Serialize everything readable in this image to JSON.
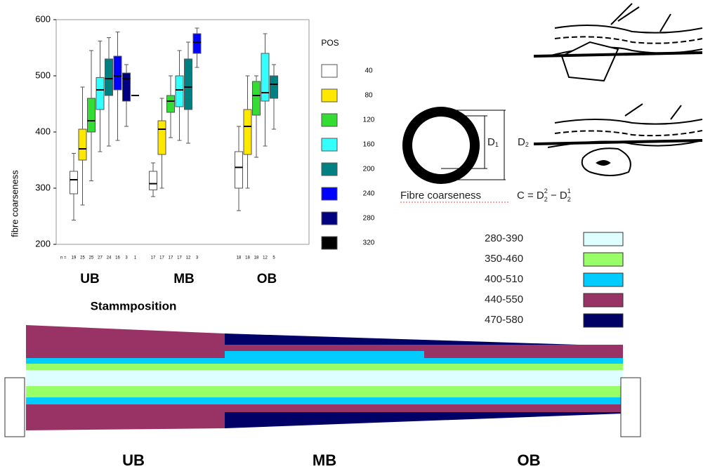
{
  "chart_data": {
    "type": "box",
    "y_label": "fibre coarseness",
    "x_label": "Stammposition",
    "categories": [
      "UB",
      "MB",
      "OB"
    ],
    "ylim": [
      200,
      600
    ],
    "yticks": [
      200,
      300,
      400,
      500,
      600
    ],
    "legend_title": "POS",
    "n_label": "n =",
    "counts": [
      [
        19,
        25,
        25,
        27,
        24,
        16,
        3,
        1
      ],
      [
        17,
        17,
        17,
        17,
        12,
        3
      ],
      [
        18,
        18,
        18,
        12,
        5
      ]
    ],
    "series": [
      {
        "name": "40",
        "color": "#ffffff",
        "values": [
          {
            "min": 243,
            "q1": 290,
            "median": 315,
            "q3": 330,
            "max": 362
          },
          {
            "min": 285,
            "q1": 297,
            "median": 308,
            "q3": 330,
            "max": 345
          },
          {
            "min": 260,
            "q1": 300,
            "median": 337,
            "q3": 365,
            "max": 410
          }
        ]
      },
      {
        "name": "80",
        "color": "#ffe800",
        "values": [
          {
            "min": 270,
            "q1": 350,
            "median": 370,
            "q3": 405,
            "max": 480
          },
          {
            "min": 300,
            "q1": 360,
            "median": 405,
            "q3": 420,
            "max": 460
          },
          {
            "min": 300,
            "q1": 360,
            "median": 410,
            "q3": 440,
            "max": 500
          }
        ]
      },
      {
        "name": "120",
        "color": "#33dd33",
        "values": [
          {
            "min": 313,
            "q1": 400,
            "median": 420,
            "q3": 460,
            "max": 545
          },
          {
            "min": 390,
            "q1": 435,
            "median": 455,
            "q3": 465,
            "max": 500
          },
          {
            "min": 355,
            "q1": 430,
            "median": 465,
            "q3": 490,
            "max": 500
          }
        ]
      },
      {
        "name": "160",
        "color": "#33ffff",
        "values": [
          {
            "min": 365,
            "q1": 440,
            "median": 475,
            "q3": 497,
            "max": 562
          },
          {
            "min": 385,
            "q1": 445,
            "median": 475,
            "q3": 500,
            "max": 545
          },
          {
            "min": 375,
            "q1": 455,
            "median": 470,
            "q3": 540,
            "max": 575
          }
        ]
      },
      {
        "name": "200",
        "color": "#008080",
        "values": [
          {
            "min": 375,
            "q1": 465,
            "median": 495,
            "q3": 530,
            "max": 568
          },
          {
            "min": 380,
            "q1": 440,
            "median": 480,
            "q3": 530,
            "max": 560
          },
          {
            "min": 405,
            "q1": 460,
            "median": 485,
            "q3": 500,
            "max": 520
          }
        ]
      },
      {
        "name": "240",
        "color": "#0000ff",
        "values": [
          {
            "min": 385,
            "q1": 475,
            "median": 500,
            "q3": 535,
            "max": 578
          },
          {
            "min": 515,
            "q1": 540,
            "median": 560,
            "q3": 575,
            "max": 585
          },
          null
        ]
      },
      {
        "name": "280",
        "color": "#000080",
        "values": [
          {
            "min": 410,
            "q1": 455,
            "median": 495,
            "q3": 505,
            "max": 520
          },
          null,
          null
        ]
      },
      {
        "name": "320",
        "color": "#000000",
        "values": [
          {
            "min": 465,
            "q1": 465,
            "median": 465,
            "q3": 465,
            "max": 465
          },
          null,
          null
        ]
      }
    ]
  },
  "diagram": {
    "d1": [
      "D",
      "1"
    ],
    "d2": [
      "D",
      "2"
    ],
    "formula_label": "Fibre coarseness",
    "formula": [
      "C = D",
      "2",
      "2",
      " − D",
      "1",
      "2"
    ]
  },
  "range_legend": [
    {
      "label": "280-390",
      "color": "#ddffff"
    },
    {
      "label": "350-460",
      "color": "#99ff66"
    },
    {
      "label": "400-510",
      "color": "#00ccff"
    },
    {
      "label": "440-550",
      "color": "#993366"
    },
    {
      "label": "470-580",
      "color": "#000066"
    }
  ],
  "stem": {
    "labels": [
      "UB",
      "MB",
      "OB"
    ]
  }
}
